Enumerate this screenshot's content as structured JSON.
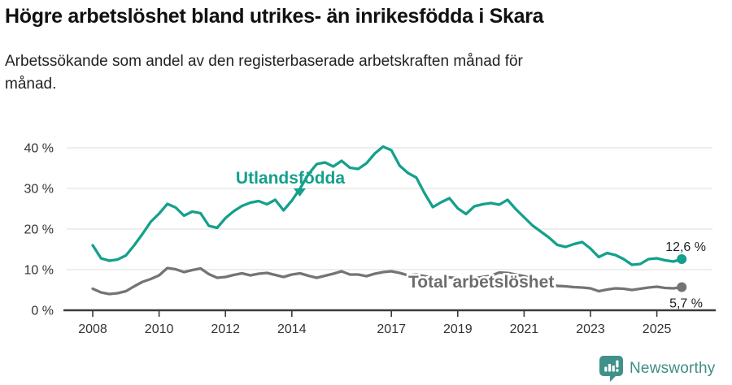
{
  "header": {
    "title": "Högre arbetslöshet bland utrikes- än inrikesfödda i Skara",
    "subtitle": "Arbetssökande som andel av den registerbaserade arbetskraften månad för månad."
  },
  "chart_data": {
    "type": "line",
    "title": "Högre arbetslöshet bland utrikes- än inrikesfödda i Skara",
    "subtitle": "Arbetssökande som andel av den registerbaserade arbetskraften månad för månad.",
    "grid": "horizontal",
    "legend_position": "inline-labels",
    "x_axis": {
      "label": "",
      "start_year": 2008,
      "step_years": 0.25,
      "tick_years": [
        2008,
        2010,
        2012,
        2014,
        2017,
        2019,
        2021,
        2023,
        2025
      ],
      "range": [
        2007.3,
        2026.2
      ]
    },
    "y_axis": {
      "label": "",
      "unit": "%",
      "ticks": [
        0,
        10,
        20,
        30,
        40
      ],
      "tick_suffix": " %",
      "range": [
        0,
        42
      ]
    },
    "series": [
      {
        "name": "Utlandsfödda",
        "color": "#14a08c",
        "end_value": 12.6,
        "end_label": "12,6 %",
        "values": [
          16.0,
          12.8,
          12.2,
          12.5,
          13.5,
          16.0,
          18.8,
          21.8,
          23.8,
          26.2,
          25.3,
          23.3,
          24.3,
          23.9,
          20.8,
          20.3,
          22.7,
          24.4,
          25.7,
          26.5,
          26.9,
          26.1,
          27.2,
          24.6,
          27.0,
          30.0,
          33.5,
          36.0,
          36.4,
          35.4,
          36.8,
          35.1,
          34.8,
          36.2,
          38.6,
          40.3,
          39.4,
          35.6,
          33.8,
          32.7,
          28.8,
          25.4,
          26.6,
          27.6,
          25.1,
          23.7,
          25.6,
          26.1,
          26.4,
          26.0,
          27.2,
          24.9,
          22.9,
          20.9,
          19.4,
          17.9,
          16.1,
          15.6,
          16.3,
          16.8,
          15.2,
          13.1,
          14.1,
          13.6,
          12.6,
          11.2,
          11.4,
          12.6,
          12.8,
          12.3,
          12.0,
          12.6
        ]
      },
      {
        "name": "Total arbetslöshet",
        "color": "#747474",
        "end_value": 5.7,
        "end_label": "5,7 %",
        "values": [
          5.3,
          4.4,
          4.0,
          4.2,
          4.7,
          5.9,
          7.0,
          7.7,
          8.6,
          10.4,
          10.1,
          9.4,
          9.9,
          10.3,
          8.9,
          8.0,
          8.2,
          8.7,
          9.1,
          8.6,
          9.0,
          9.2,
          8.7,
          8.2,
          8.8,
          9.1,
          8.5,
          8.0,
          8.5,
          9.0,
          9.6,
          8.8,
          8.8,
          8.4,
          9.0,
          9.4,
          9.6,
          9.2,
          8.6,
          8.8,
          8.4,
          8.0,
          7.8,
          8.1,
          7.9,
          7.6,
          7.9,
          8.2,
          8.5,
          9.3,
          9.2,
          8.8,
          8.4,
          7.8,
          7.2,
          6.6,
          6.0,
          5.9,
          5.7,
          5.6,
          5.4,
          4.7,
          5.1,
          5.4,
          5.3,
          5.0,
          5.3,
          5.6,
          5.8,
          5.5,
          5.4,
          5.7
        ]
      }
    ],
    "colors": {
      "grid": "#dcdcdc",
      "axis": "#3a3a3a",
      "tick_label": "#333333",
      "annotation_text": "#222222"
    }
  },
  "footer": {
    "brand": "Newsworthy",
    "logo_color": "#3f9189",
    "wordmark_color": "#3f8d84"
  }
}
